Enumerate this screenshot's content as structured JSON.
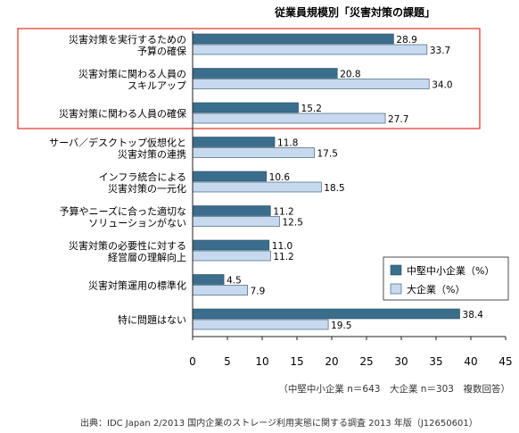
{
  "chart_data": {
    "type": "bar",
    "orientation": "horizontal",
    "title": "従業員規模別「災害対策の課題」",
    "categories": [
      [
        "災害対策を実行するための",
        "予算の確保"
      ],
      [
        "災害対策に関わる人員の",
        "スキルアップ"
      ],
      [
        "災害対策に関わる人員の確保"
      ],
      [
        "サーバ／デスクトップ仮想化と",
        "災害対策の連携"
      ],
      [
        "インフラ統合による",
        "災害対策の一元化"
      ],
      [
        "予算やニーズに合った適切な",
        "ソリューションがない"
      ],
      [
        "災害対策の必要性に対する",
        "経営層の理解向上"
      ],
      [
        "災害対策運用の標準化"
      ],
      [
        "特に問題はない"
      ]
    ],
    "series": [
      {
        "name": "中堅中小企業（%）",
        "color": "#3a6e8c",
        "values": [
          28.9,
          20.8,
          15.2,
          11.8,
          10.6,
          11.2,
          11.0,
          4.5,
          38.4
        ]
      },
      {
        "name": "大企業（%）",
        "color": "#c7d9ee",
        "values": [
          33.7,
          34.0,
          27.7,
          17.5,
          18.5,
          12.5,
          11.2,
          7.9,
          19.5
        ]
      }
    ],
    "xlim": [
      0,
      45
    ],
    "xticks": [
      "0",
      "5",
      "10",
      "15",
      "20",
      "25",
      "30",
      "35",
      "40",
      "45"
    ],
    "legend_placement": "right",
    "highlight": {
      "color": "#e03020",
      "rows": [
        0,
        1,
        2
      ]
    },
    "grid": false
  },
  "notes": {
    "sample": "（中堅中小企業 n＝643　大企業 n＝303　複数回答）",
    "source": "出典：IDC Japan 2/2013 国内企業のストレージ利用実態に関する調査 2013 年版（J12650601）"
  }
}
